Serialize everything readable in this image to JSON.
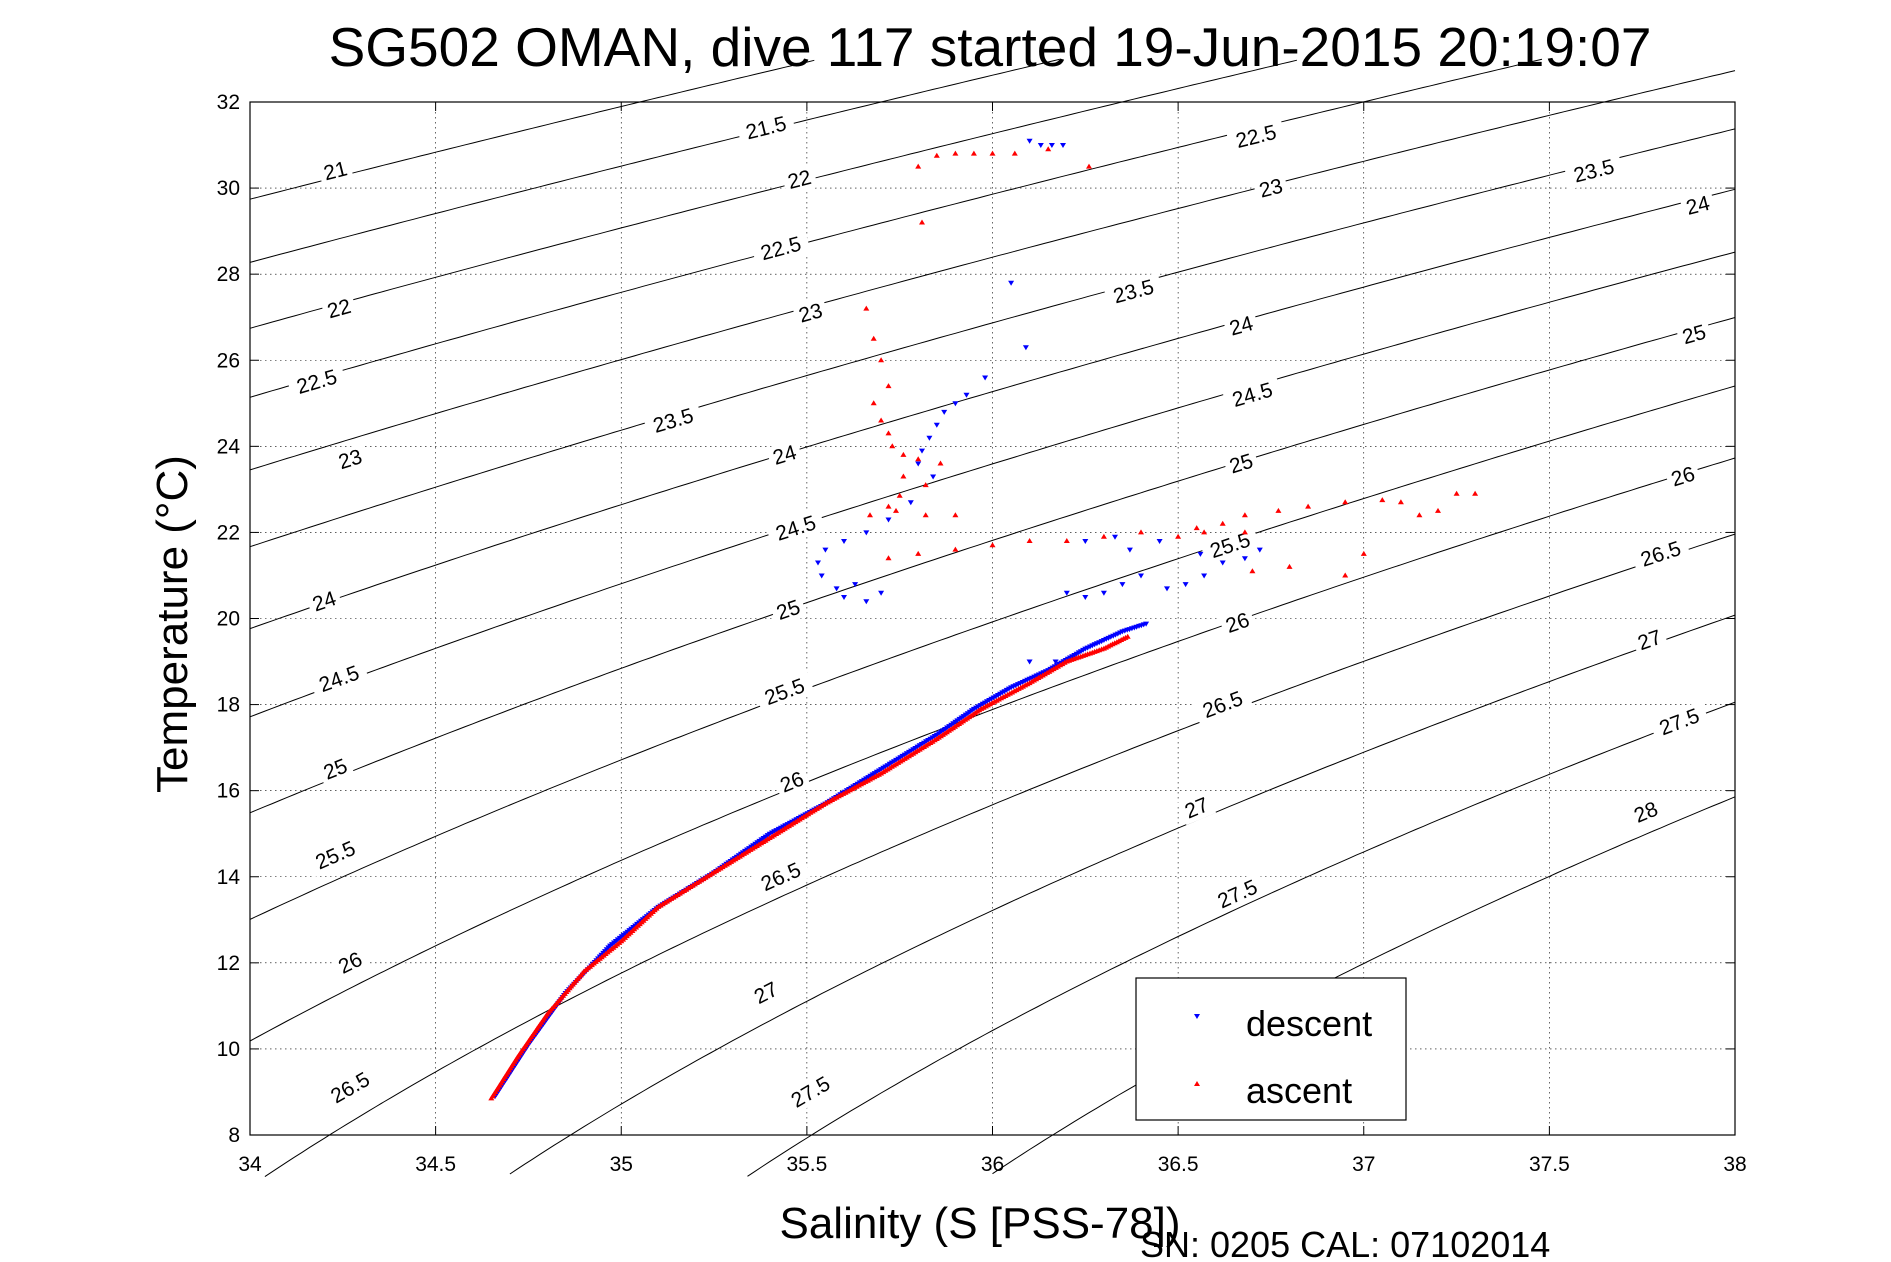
{
  "chart_data": {
    "type": "scatter",
    "title": "SG502 OMAN, dive 117 started 19-Jun-2015 20:19:07",
    "xlabel": "Salinity (S [PSS-78])",
    "ylabel": "Temperature (°C)",
    "footer": "SN: 0205  CAL: 07102014",
    "xlim": [
      34,
      38
    ],
    "ylim": [
      8,
      32
    ],
    "xticks": [
      34,
      34.5,
      35,
      35.5,
      36,
      36.5,
      37,
      37.5,
      38
    ],
    "xtick_labels": [
      "34",
      "34.5",
      "35",
      "35.5",
      "36",
      "36.5",
      "37",
      "37.5",
      "38"
    ],
    "yticks": [
      8,
      10,
      12,
      14,
      16,
      18,
      20,
      22,
      24,
      26,
      28,
      30,
      32
    ],
    "ytick_labels": [
      "8",
      "10",
      "12",
      "14",
      "16",
      "18",
      "20",
      "22",
      "24",
      "26",
      "28",
      "30",
      "32"
    ],
    "grid": true,
    "legend_position": "bottom-right",
    "density_contours": {
      "levels": [
        21,
        21.5,
        22,
        22.5,
        23,
        23.5,
        24,
        24.5,
        25,
        25.5,
        26,
        26.5,
        27,
        27.5,
        28
      ],
      "labels": [
        {
          "text": "21",
          "s": 34.23,
          "t": 30.4
        },
        {
          "text": "21.5",
          "s": 35.39,
          "t": 31.4
        },
        {
          "text": "22",
          "s": 34.24,
          "t": 27.2
        },
        {
          "text": "22",
          "s": 35.48,
          "t": 30.2
        },
        {
          "text": "22.5",
          "s": 34.18,
          "t": 25.5
        },
        {
          "text": "22.5",
          "s": 35.43,
          "t": 28.6
        },
        {
          "text": "22.5",
          "s": 36.71,
          "t": 31.2
        },
        {
          "text": "23",
          "s": 34.27,
          "t": 23.7
        },
        {
          "text": "23",
          "s": 35.51,
          "t": 27.1
        },
        {
          "text": "23",
          "s": 36.75,
          "t": 30.0
        },
        {
          "text": "23.5",
          "s": 35.14,
          "t": 24.6
        },
        {
          "text": "23.5",
          "s": 36.38,
          "t": 27.6
        },
        {
          "text": "23.5",
          "s": 37.62,
          "t": 30.4
        },
        {
          "text": "24",
          "s": 34.2,
          "t": 20.4
        },
        {
          "text": "24",
          "s": 35.44,
          "t": 23.8
        },
        {
          "text": "24",
          "s": 36.67,
          "t": 26.8
        },
        {
          "text": "24",
          "s": 37.9,
          "t": 29.6
        },
        {
          "text": "24.5",
          "s": 34.24,
          "t": 18.6
        },
        {
          "text": "24.5",
          "s": 35.47,
          "t": 22.1
        },
        {
          "text": "24.5",
          "s": 36.7,
          "t": 25.2
        },
        {
          "text": "25",
          "s": 34.23,
          "t": 16.5
        },
        {
          "text": "25",
          "s": 35.45,
          "t": 20.2
        },
        {
          "text": "25",
          "s": 36.67,
          "t": 23.6
        },
        {
          "text": "25",
          "s": 37.89,
          "t": 26.6
        },
        {
          "text": "25.5",
          "s": 34.23,
          "t": 14.5
        },
        {
          "text": "25.5",
          "s": 35.44,
          "t": 18.3
        },
        {
          "text": "25.5",
          "s": 36.64,
          "t": 21.7
        },
        {
          "text": "26",
          "s": 34.27,
          "t": 12.0
        },
        {
          "text": "26",
          "s": 35.46,
          "t": 16.2
        },
        {
          "text": "26",
          "s": 36.66,
          "t": 19.9
        },
        {
          "text": "26",
          "s": 37.86,
          "t": 23.3
        },
        {
          "text": "26.5",
          "s": 34.27,
          "t": 9.1
        },
        {
          "text": "26.5",
          "s": 35.43,
          "t": 14.0
        },
        {
          "text": "26.5",
          "s": 36.62,
          "t": 18.0
        },
        {
          "text": "26.5",
          "s": 37.8,
          "t": 21.5
        },
        {
          "text": "27",
          "s": 35.39,
          "t": 11.3
        },
        {
          "text": "27",
          "s": 36.55,
          "t": 15.6
        },
        {
          "text": "27",
          "s": 37.77,
          "t": 19.5
        },
        {
          "text": "27.5",
          "s": 35.51,
          "t": 9.0
        },
        {
          "text": "27.5",
          "s": 36.66,
          "t": 13.6
        },
        {
          "text": "27.5",
          "s": 37.85,
          "t": 17.6
        },
        {
          "text": "28",
          "s": 37.76,
          "t": 15.5
        }
      ]
    },
    "series": [
      {
        "name": "descent",
        "color": "#0000ff",
        "marker": "triangle-down",
        "path": [
          [
            34.66,
            8.9
          ],
          [
            34.75,
            10.1
          ],
          [
            34.85,
            11.3
          ],
          [
            34.97,
            12.4
          ],
          [
            35.1,
            13.3
          ],
          [
            35.25,
            14.1
          ],
          [
            35.4,
            15.0
          ],
          [
            35.55,
            15.7
          ],
          [
            35.7,
            16.5
          ],
          [
            35.85,
            17.3
          ],
          [
            35.95,
            17.9
          ],
          [
            36.05,
            18.4
          ],
          [
            36.15,
            18.8
          ],
          [
            36.25,
            19.3
          ],
          [
            36.35,
            19.7
          ],
          [
            36.42,
            19.9
          ]
        ],
        "scatter": [
          [
            36.1,
            19.0
          ],
          [
            36.17,
            19.0
          ],
          [
            36.2,
            20.6
          ],
          [
            36.25,
            20.5
          ],
          [
            36.3,
            20.6
          ],
          [
            36.35,
            20.8
          ],
          [
            36.4,
            21.0
          ],
          [
            36.47,
            20.7
          ],
          [
            36.52,
            20.8
          ],
          [
            36.57,
            21.0
          ],
          [
            36.62,
            21.3
          ],
          [
            36.68,
            21.4
          ],
          [
            36.72,
            21.6
          ],
          [
            36.56,
            21.5
          ],
          [
            36.45,
            21.8
          ],
          [
            36.37,
            21.6
          ],
          [
            36.33,
            21.9
          ],
          [
            36.25,
            21.8
          ],
          [
            35.58,
            20.7
          ],
          [
            35.6,
            20.5
          ],
          [
            35.63,
            20.8
          ],
          [
            35.66,
            20.4
          ],
          [
            35.7,
            20.6
          ],
          [
            35.54,
            21.0
          ],
          [
            35.53,
            21.3
          ],
          [
            35.55,
            21.6
          ],
          [
            35.6,
            21.8
          ],
          [
            35.66,
            22.0
          ],
          [
            35.72,
            22.3
          ],
          [
            35.78,
            22.7
          ],
          [
            35.84,
            23.3
          ],
          [
            35.8,
            23.6
          ],
          [
            35.81,
            23.9
          ],
          [
            35.83,
            24.2
          ],
          [
            35.85,
            24.5
          ],
          [
            35.87,
            24.8
          ],
          [
            35.9,
            25.0
          ],
          [
            35.93,
            25.2
          ],
          [
            35.98,
            25.6
          ],
          [
            36.09,
            26.3
          ],
          [
            36.05,
            27.8
          ],
          [
            36.1,
            31.1
          ],
          [
            36.13,
            31.0
          ],
          [
            36.16,
            31.0
          ],
          [
            36.19,
            31.0
          ]
        ]
      },
      {
        "name": "ascent",
        "color": "#ff0000",
        "marker": "triangle-up",
        "path": [
          [
            34.65,
            8.85
          ],
          [
            34.72,
            9.8
          ],
          [
            34.8,
            10.8
          ],
          [
            34.9,
            11.8
          ],
          [
            35.0,
            12.5
          ],
          [
            35.1,
            13.3
          ],
          [
            35.25,
            14.1
          ],
          [
            35.4,
            14.9
          ],
          [
            35.55,
            15.7
          ],
          [
            35.7,
            16.4
          ],
          [
            35.85,
            17.2
          ],
          [
            35.97,
            17.9
          ],
          [
            36.1,
            18.5
          ],
          [
            36.2,
            19.0
          ],
          [
            36.3,
            19.3
          ],
          [
            36.37,
            19.6
          ]
        ],
        "scatter": [
          [
            35.8,
            30.5
          ],
          [
            35.85,
            30.75
          ],
          [
            35.9,
            30.8
          ],
          [
            35.95,
            30.8
          ],
          [
            36.0,
            30.8
          ],
          [
            36.06,
            30.8
          ],
          [
            36.15,
            30.9
          ],
          [
            36.26,
            30.5
          ],
          [
            35.81,
            29.2
          ],
          [
            35.66,
            27.2
          ],
          [
            35.68,
            26.5
          ],
          [
            35.7,
            26.0
          ],
          [
            35.72,
            25.4
          ],
          [
            35.68,
            25.0
          ],
          [
            35.7,
            24.6
          ],
          [
            35.72,
            24.3
          ],
          [
            35.73,
            24.0
          ],
          [
            35.76,
            23.8
          ],
          [
            35.8,
            23.7
          ],
          [
            35.86,
            23.6
          ],
          [
            35.76,
            23.3
          ],
          [
            35.82,
            23.1
          ],
          [
            35.75,
            22.85
          ],
          [
            35.72,
            22.6
          ],
          [
            35.67,
            22.4
          ],
          [
            35.74,
            22.5
          ],
          [
            35.82,
            22.4
          ],
          [
            35.9,
            22.4
          ],
          [
            35.72,
            21.4
          ],
          [
            35.8,
            21.5
          ],
          [
            35.9,
            21.6
          ],
          [
            36.0,
            21.7
          ],
          [
            36.1,
            21.8
          ],
          [
            36.2,
            21.8
          ],
          [
            36.3,
            21.9
          ],
          [
            36.4,
            22.0
          ],
          [
            36.5,
            21.9
          ],
          [
            36.55,
            22.1
          ],
          [
            36.62,
            22.2
          ],
          [
            36.68,
            22.4
          ],
          [
            36.77,
            22.5
          ],
          [
            36.85,
            22.6
          ],
          [
            36.95,
            22.7
          ],
          [
            37.05,
            22.75
          ],
          [
            37.1,
            22.7
          ],
          [
            37.15,
            22.4
          ],
          [
            37.2,
            22.5
          ],
          [
            37.25,
            22.9
          ],
          [
            37.3,
            22.9
          ],
          [
            36.7,
            21.1
          ],
          [
            36.8,
            21.2
          ],
          [
            36.95,
            21.0
          ],
          [
            37.0,
            21.5
          ],
          [
            36.57,
            22.0
          ],
          [
            36.68,
            22.0
          ]
        ]
      }
    ]
  }
}
